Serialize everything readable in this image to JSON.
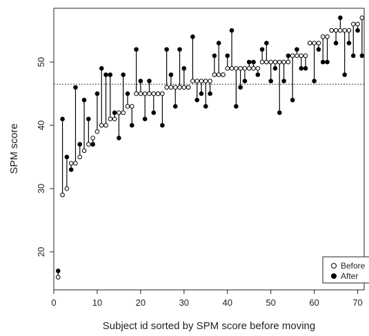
{
  "chart_data": {
    "type": "scatter",
    "title": "",
    "xlabel": "Subject id sorted by SPM score before moving",
    "ylabel": "SPM score",
    "xlim": [
      0,
      71.5
    ],
    "ylim": [
      14,
      58.5
    ],
    "x_ticks": [
      0,
      10,
      20,
      30,
      40,
      50,
      60,
      70
    ],
    "y_ticks": [
      20,
      30,
      40,
      50
    ],
    "grid": false,
    "legend_position": "bottom-right",
    "reference_line": {
      "y": 46.5,
      "style": "dotted"
    },
    "series": [
      {
        "name": "Before",
        "marker": "open-circle",
        "color": "#000000",
        "points": [
          [
            1,
            16
          ],
          [
            2,
            29
          ],
          [
            3,
            30
          ],
          [
            4,
            34
          ],
          [
            5,
            34
          ],
          [
            6,
            35
          ],
          [
            7,
            36
          ],
          [
            8,
            37
          ],
          [
            9,
            38
          ],
          [
            10,
            39
          ],
          [
            11,
            40
          ],
          [
            12,
            40
          ],
          [
            13,
            41
          ],
          [
            14,
            41
          ],
          [
            15,
            42
          ],
          [
            16,
            42
          ],
          [
            17,
            43
          ],
          [
            18,
            43
          ],
          [
            19,
            45
          ],
          [
            20,
            45
          ],
          [
            21,
            45
          ],
          [
            22,
            45
          ],
          [
            23,
            45
          ],
          [
            24,
            45
          ],
          [
            25,
            45
          ],
          [
            26,
            46
          ],
          [
            27,
            46
          ],
          [
            28,
            46
          ],
          [
            29,
            46
          ],
          [
            30,
            46
          ],
          [
            31,
            46
          ],
          [
            32,
            47
          ],
          [
            33,
            47
          ],
          [
            34,
            47
          ],
          [
            35,
            47
          ],
          [
            36,
            47
          ],
          [
            37,
            48
          ],
          [
            38,
            48
          ],
          [
            39,
            48
          ],
          [
            40,
            49
          ],
          [
            41,
            49
          ],
          [
            42,
            49
          ],
          [
            43,
            49
          ],
          [
            44,
            49
          ],
          [
            45,
            49
          ],
          [
            46,
            49
          ],
          [
            47,
            49
          ],
          [
            48,
            50
          ],
          [
            49,
            50
          ],
          [
            50,
            50
          ],
          [
            51,
            50
          ],
          [
            52,
            50
          ],
          [
            53,
            50
          ],
          [
            54,
            50
          ],
          [
            55,
            51
          ],
          [
            56,
            51
          ],
          [
            57,
            51
          ],
          [
            58,
            51
          ],
          [
            59,
            53
          ],
          [
            60,
            53
          ],
          [
            61,
            53
          ],
          [
            62,
            54
          ],
          [
            63,
            54
          ],
          [
            64,
            55
          ],
          [
            65,
            55
          ],
          [
            66,
            55
          ],
          [
            67,
            55
          ],
          [
            68,
            55
          ],
          [
            69,
            56
          ],
          [
            70,
            56
          ],
          [
            71,
            57
          ]
        ]
      },
      {
        "name": "After",
        "marker": "filled-circle",
        "color": "#000000",
        "points": [
          [
            1,
            17
          ],
          [
            2,
            41
          ],
          [
            3,
            35
          ],
          [
            4,
            33
          ],
          [
            5,
            46
          ],
          [
            6,
            37
          ],
          [
            7,
            44
          ],
          [
            8,
            41
          ],
          [
            9,
            37
          ],
          [
            10,
            45
          ],
          [
            11,
            49
          ],
          [
            12,
            48
          ],
          [
            13,
            48
          ],
          [
            14,
            42
          ],
          [
            15,
            38
          ],
          [
            16,
            48
          ],
          [
            17,
            45
          ],
          [
            18,
            40
          ],
          [
            19,
            52
          ],
          [
            20,
            47
          ],
          [
            21,
            41
          ],
          [
            22,
            47
          ],
          [
            23,
            42
          ],
          [
            24,
            45
          ],
          [
            25,
            40
          ],
          [
            26,
            52
          ],
          [
            27,
            48
          ],
          [
            28,
            43
          ],
          [
            29,
            52
          ],
          [
            30,
            49
          ],
          [
            31,
            46
          ],
          [
            32,
            54
          ],
          [
            33,
            44
          ],
          [
            34,
            45
          ],
          [
            35,
            43
          ],
          [
            36,
            45
          ],
          [
            37,
            51
          ],
          [
            38,
            53
          ],
          [
            39,
            48
          ],
          [
            40,
            51
          ],
          [
            41,
            55
          ],
          [
            42,
            43
          ],
          [
            43,
            46
          ],
          [
            44,
            47
          ],
          [
            45,
            50
          ],
          [
            46,
            50
          ],
          [
            47,
            48
          ],
          [
            48,
            52
          ],
          [
            49,
            53
          ],
          [
            50,
            47
          ],
          [
            51,
            49
          ],
          [
            52,
            42
          ],
          [
            53,
            47
          ],
          [
            54,
            51
          ],
          [
            55,
            44
          ],
          [
            56,
            52
          ],
          [
            57,
            49
          ],
          [
            58,
            49
          ],
          [
            59,
            53
          ],
          [
            60,
            47
          ],
          [
            61,
            52
          ],
          [
            62,
            50
          ],
          [
            63,
            50
          ],
          [
            64,
            55
          ],
          [
            65,
            53
          ],
          [
            66,
            57
          ],
          [
            67,
            48
          ],
          [
            68,
            53
          ],
          [
            69,
            51
          ],
          [
            70,
            55
          ],
          [
            71,
            51
          ]
        ]
      }
    ],
    "legend": [
      {
        "label": "Before",
        "marker": "open-circle"
      },
      {
        "label": "After",
        "marker": "filled-circle"
      }
    ]
  }
}
